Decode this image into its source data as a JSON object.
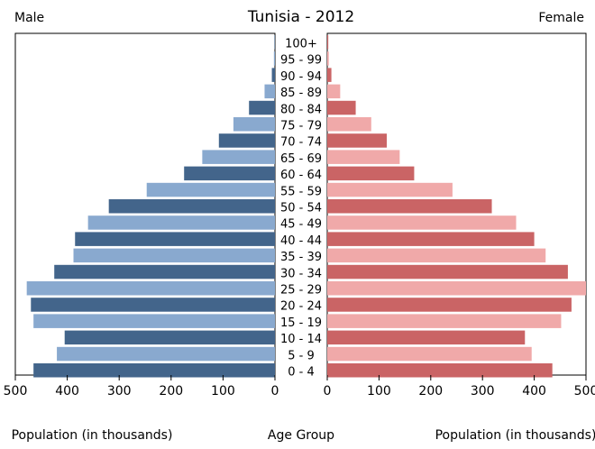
{
  "chart_data": {
    "type": "bar",
    "title": "Tunisia - 2012",
    "left_label": "Male",
    "right_label": "Female",
    "xlabel_left": "Population (in thousands)",
    "xlabel_center": "Age Group",
    "xlabel_right": "Population (in thousands)",
    "xlim": [
      0,
      500
    ],
    "x_ticks": [
      500,
      400,
      300,
      200,
      100,
      0
    ],
    "x_ticks_right": [
      0,
      100,
      200,
      300,
      400,
      500
    ],
    "categories": [
      "100+",
      "95 - 99",
      "90 - 94",
      "85 - 89",
      "80 - 84",
      "75 - 79",
      "70 - 74",
      "65 - 69",
      "60 - 64",
      "55 - 59",
      "50 - 54",
      "45 - 49",
      "40 - 44",
      "35 - 39",
      "30 - 34",
      "25 - 29",
      "20 - 24",
      "15 - 19",
      "10 - 14",
      "5 - 9",
      "0 - 4"
    ],
    "series": [
      {
        "name": "Male",
        "values": [
          1,
          2,
          6,
          20,
          50,
          80,
          108,
          140,
          175,
          247,
          320,
          360,
          385,
          388,
          425,
          478,
          470,
          465,
          405,
          420,
          465
        ],
        "colors": [
          "#43658b",
          "#89a9cf"
        ]
      },
      {
        "name": "Female",
        "values": [
          2,
          3,
          8,
          25,
          55,
          85,
          115,
          140,
          168,
          242,
          318,
          365,
          400,
          422,
          465,
          500,
          472,
          452,
          382,
          395,
          435
        ],
        "colors": [
          "#ca6465",
          "#f0a9a9"
        ]
      }
    ]
  }
}
